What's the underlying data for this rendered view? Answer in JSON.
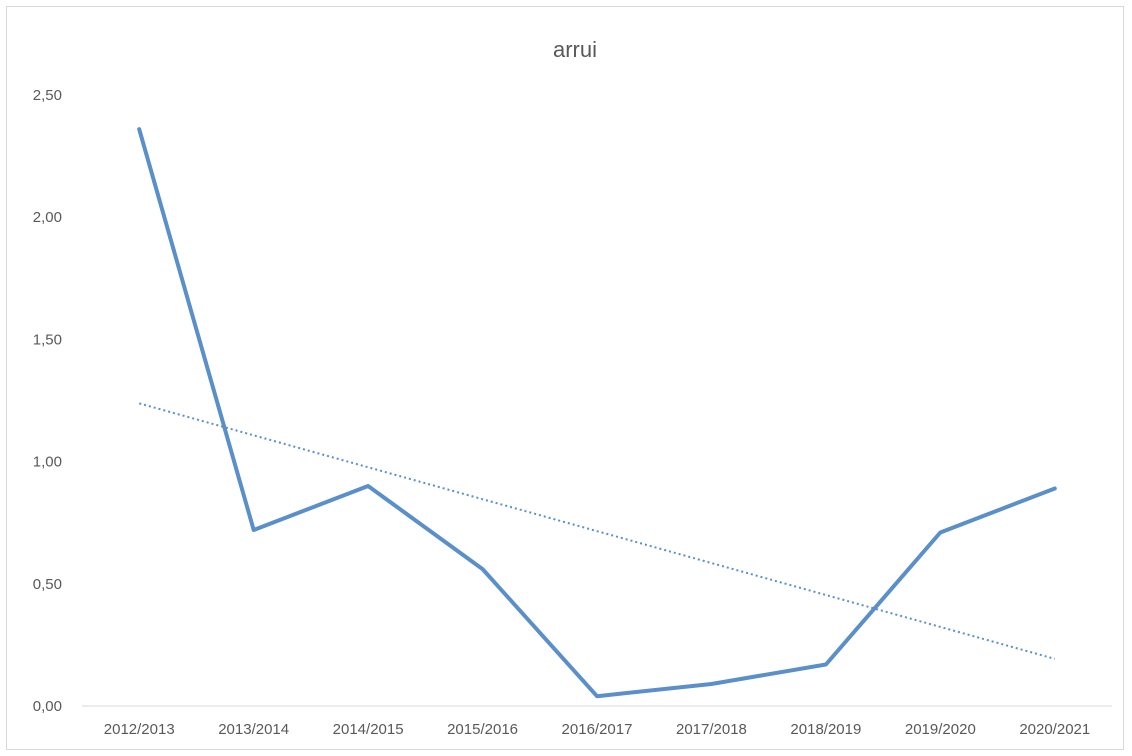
{
  "chart_data": {
    "type": "line",
    "title": "arrui",
    "xlabel": "",
    "ylabel": "",
    "categories": [
      "2012/2013",
      "2013/2014",
      "2014/2015",
      "2015/2016",
      "2016/2017",
      "2017/2018",
      "2018/2019",
      "2019/2020",
      "2020/2021"
    ],
    "series": [
      {
        "values": [
          2.36,
          0.72,
          0.9,
          0.56,
          0.04,
          0.09,
          0.17,
          0.71,
          0.89
        ],
        "color": "#5b8fc9"
      }
    ],
    "trendline": {
      "type": "linear",
      "style": "dotted",
      "color": "#5b8fc9"
    },
    "ylim": [
      0,
      2.5
    ],
    "y_ticks": [
      "0,00",
      "0,50",
      "1,00",
      "1,50",
      "2,00",
      "2,50"
    ],
    "grid": false,
    "legend": "none"
  }
}
